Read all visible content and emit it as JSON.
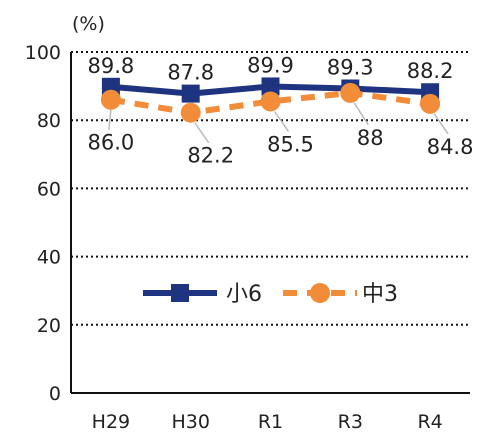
{
  "chart_data": {
    "type": "line",
    "unit_label": "(%)",
    "categories": [
      "H29",
      "H30",
      "R1",
      "R3",
      "R4"
    ],
    "ylim": [
      0,
      100
    ],
    "yticks": [
      0,
      20,
      40,
      60,
      80,
      100
    ],
    "grid": "horizontal-dotted",
    "legend_placement": "center",
    "series": [
      {
        "name": "小6",
        "values": [
          89.8,
          87.8,
          89.9,
          89.3,
          88.2
        ],
        "labels": [
          "89.8",
          "87.8",
          "89.9",
          "89.3",
          "88.2"
        ],
        "color": "#1f3480",
        "marker": "square",
        "line": "solid"
      },
      {
        "name": "中3",
        "values": [
          86.0,
          82.2,
          85.5,
          88,
          84.8
        ],
        "labels": [
          "86.0",
          "82.2",
          "85.5",
          "88",
          "84.8"
        ],
        "color": "#f28c38",
        "marker": "circle",
        "line": "dashed"
      }
    ]
  }
}
